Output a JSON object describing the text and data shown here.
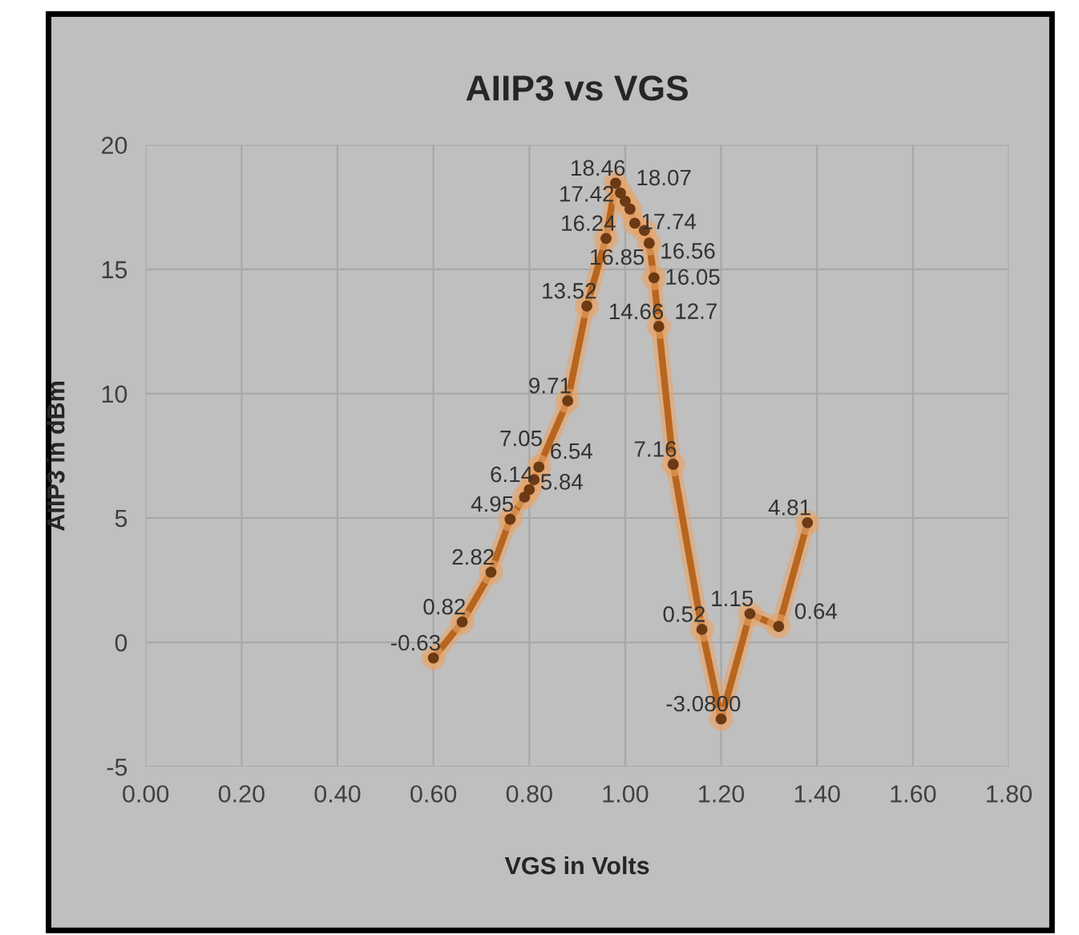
{
  "chart_data": {
    "type": "line",
    "title": "AIIP3 vs VGS",
    "xlabel": "VGS in Volts",
    "ylabel": "AIIP3 in dBm",
    "xlim": [
      0,
      1.8
    ],
    "xticks": [
      {
        "value": 0,
        "label": "0.00"
      },
      {
        "value": 0.2,
        "label": "0.20"
      },
      {
        "value": 0.4,
        "label": "0.40"
      },
      {
        "value": 0.6,
        "label": "0.60"
      },
      {
        "value": 0.8,
        "label": "0.80"
      },
      {
        "value": 1.0,
        "label": "1.00"
      },
      {
        "value": 1.2,
        "label": "1.20"
      },
      {
        "value": 1.4,
        "label": "1.40"
      },
      {
        "value": 1.6,
        "label": "1.60"
      },
      {
        "value": 1.8,
        "label": "1.80"
      }
    ],
    "ylim": [
      -5,
      20
    ],
    "yticks": [
      -5,
      0,
      5,
      10,
      15,
      20
    ],
    "grid": true,
    "marker": "circle",
    "line_style": "solid",
    "series": [
      {
        "color": "#b8651e",
        "x": [
          0.6,
          0.66,
          0.72,
          0.76,
          0.79,
          0.8,
          0.81,
          0.82,
          0.88,
          0.92,
          0.96,
          0.98,
          0.99,
          1.0,
          1.01,
          1.02,
          1.04,
          1.05,
          1.06,
          1.07,
          1.1,
          1.16,
          1.2,
          1.26,
          1.32,
          1.38
        ],
        "values": [
          -0.63,
          0.82,
          2.82,
          4.95,
          5.84,
          6.14,
          6.54,
          7.05,
          9.71,
          13.52,
          16.24,
          18.46,
          18.07,
          17.74,
          17.42,
          16.85,
          16.56,
          16.05,
          14.66,
          12.7,
          7.16,
          0.52,
          -3.08,
          1.15,
          0.64,
          4.81
        ],
        "value_labels": [
          "-0.63",
          "0.82",
          "2.82",
          "4.95",
          "5.84",
          "6.14",
          "6.54",
          "7.05",
          "9.71",
          "13.52",
          "16.24",
          "18.46",
          "18.07",
          "17.74",
          "17.42",
          "16.85",
          "16.56",
          "16.05",
          "14.66",
          "12.7",
          "7.16",
          "0.52",
          "-3.0800",
          "1.15",
          "0.64",
          "4.81"
        ]
      }
    ]
  }
}
